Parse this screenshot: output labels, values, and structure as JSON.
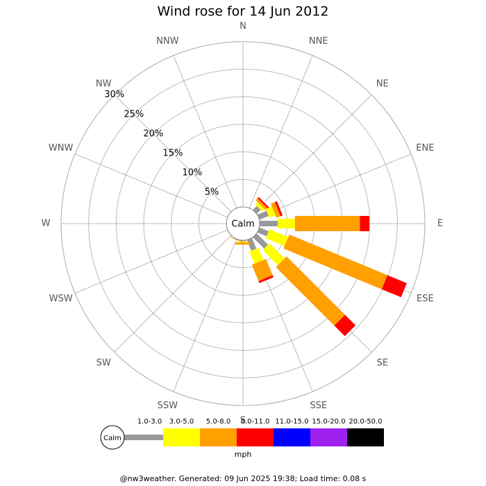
{
  "chart_data": {
    "type": "windrose",
    "title": "Wind rose for 14 Jun 2012",
    "categories": [
      "N",
      "NNE",
      "NE",
      "ENE",
      "E",
      "ESE",
      "SE",
      "SSE",
      "S",
      "SSW",
      "SW",
      "WSW",
      "W",
      "WNW",
      "NW",
      "NNW"
    ],
    "center_label": "Calm",
    "rlim": [
      0,
      30
    ],
    "rticks": [
      {
        "value": 5,
        "label": "5%"
      },
      {
        "value": 10,
        "label": "10%"
      },
      {
        "value": 15,
        "label": "15%"
      },
      {
        "value": 20,
        "label": "20%"
      },
      {
        "value": 25,
        "label": "25%"
      },
      {
        "value": 30,
        "label": "30%"
      }
    ],
    "series": [
      {
        "name": "1.0-3.0",
        "color": "#999999",
        "values": [
          0,
          0,
          1.0,
          1.8,
          3.3,
          1.8,
          2.9,
          2.1,
          0.2,
          0.1,
          0,
          0,
          0,
          0,
          0,
          0
        ]
      },
      {
        "name": "3.0-5.0",
        "color": "#ffff00",
        "values": [
          0,
          0,
          0.6,
          1.2,
          3.1,
          3.7,
          3.9,
          2.4,
          0.2,
          0,
          0,
          0,
          0,
          0,
          0,
          0
        ]
      },
      {
        "name": "5.0-8.0",
        "color": "#ffa000",
        "values": [
          0,
          0,
          0.5,
          0.8,
          11.8,
          19.3,
          15.0,
          3.2,
          0.4,
          0.1,
          0,
          0,
          0,
          0,
          0,
          0
        ]
      },
      {
        "name": "8.0-11.0",
        "color": "#ff0000",
        "values": [
          0,
          0,
          0.3,
          0.4,
          1.7,
          3.8,
          2.7,
          0.4,
          0,
          0,
          0,
          0,
          0,
          0,
          0,
          0
        ]
      },
      {
        "name": "11.0-15.0",
        "color": "#0000ff",
        "values": [
          0,
          0,
          0,
          0,
          0,
          0,
          0,
          0,
          0,
          0,
          0,
          0,
          0,
          0,
          0,
          0
        ]
      },
      {
        "name": "15.0-20.0",
        "color": "#a020f0",
        "values": [
          0,
          0,
          0,
          0,
          0,
          0,
          0,
          0,
          0,
          0,
          0,
          0,
          0,
          0,
          0,
          0
        ]
      },
      {
        "name": "20.0-50.0",
        "color": "#000000",
        "values": [
          0,
          0,
          0,
          0,
          0,
          0,
          0,
          0,
          0,
          0,
          0,
          0,
          0,
          0,
          0,
          0
        ]
      }
    ],
    "units": "mph",
    "footer": "@nw3weather. Generated: 09 Jun 2025 19:38; Load time: 0.08 s"
  }
}
